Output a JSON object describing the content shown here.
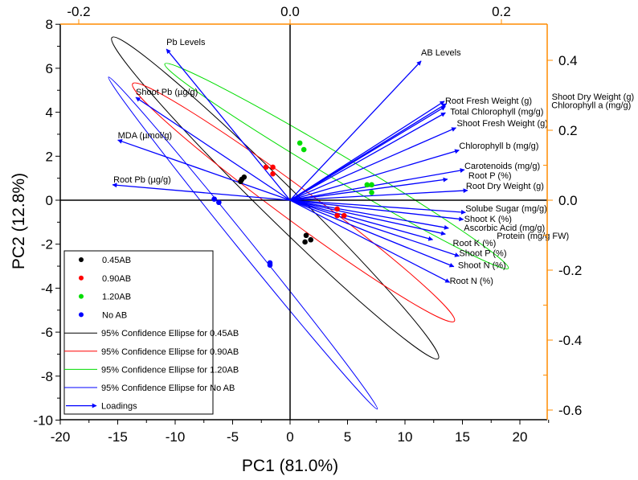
{
  "chart_data": {
    "type": "scatter",
    "title": "",
    "xlabel": "PC1 (81.0%)",
    "ylabel": "PC2 (12.8%)",
    "xlim": [
      -20,
      22.5
    ],
    "ylim": [
      -10,
      8
    ],
    "xticks": [
      "-20",
      "-15",
      "-10",
      "-5",
      "0",
      "5",
      "10",
      "15",
      "20"
    ],
    "yticks": [
      "-10",
      "-8",
      "-6",
      "-4",
      "-2",
      "0",
      "2",
      "4",
      "6",
      "8"
    ],
    "top_axis": {
      "ticks": [
        "-0.2",
        "0.0",
        "0.2"
      ]
    },
    "right_axis": {
      "ticks": [
        "-0.6",
        "-0.4",
        "-0.2",
        "0.0",
        "0.2",
        "0.4"
      ]
    },
    "axis_color_secondary": "#ff8c00",
    "legend_position": "bottom-left",
    "groups": [
      {
        "name": "0.45AB",
        "color": "#000000",
        "ellipse_label": "95% Confidence Ellipse for 0.45AB",
        "points": [
          [
            -4.2,
            0.95
          ],
          [
            -4.0,
            1.05
          ],
          [
            -4.3,
            0.85
          ],
          [
            1.4,
            -1.6
          ],
          [
            1.3,
            -1.9
          ],
          [
            1.8,
            -1.8
          ]
        ],
        "ellipse": {
          "ends": [
            [
              -15.5,
              7.4
            ],
            [
              12.9,
              -7.2
            ]
          ],
          "half_width": 0.8
        }
      },
      {
        "name": "0.90AB",
        "color": "#ff0000",
        "ellipse_label": "95% Confidence Ellipse for 0.90AB",
        "points": [
          [
            -2.1,
            1.5
          ],
          [
            -1.5,
            1.5
          ],
          [
            -1.5,
            1.2
          ],
          [
            4.1,
            -0.4
          ],
          [
            4.1,
            -0.7
          ],
          [
            4.7,
            -0.7
          ]
        ],
        "ellipse": {
          "ends": [
            [
              -13.7,
              5.3
            ],
            [
              14.3,
              -5.5
            ]
          ],
          "half_width": 0.75
        }
      },
      {
        "name": "1.20AB",
        "color": "#00dd00",
        "ellipse_label": "95% Confidence Ellipse for 1.20AB",
        "points": [
          [
            0.85,
            2.6
          ],
          [
            1.2,
            2.3
          ],
          [
            6.7,
            0.7
          ],
          [
            7.1,
            0.7
          ],
          [
            7.1,
            0.35
          ]
        ],
        "ellipse": {
          "ends": [
            [
              -10.9,
              6.2
            ],
            [
              19.0,
              -3.1
            ]
          ],
          "half_width": 0.55
        }
      },
      {
        "name": "No AB",
        "color": "#0000ff",
        "ellipse_label": "95% Confidence Ellipse for No AB",
        "points": [
          [
            -6.6,
            0.05
          ],
          [
            -6.2,
            -0.1
          ],
          [
            -1.75,
            -2.85
          ],
          [
            -1.75,
            -2.95
          ]
        ],
        "ellipse": {
          "ends": [
            [
              -15.8,
              5.6
            ],
            [
              7.6,
              -9.5
            ]
          ],
          "half_width": 0.3
        }
      }
    ],
    "loadings_label": "Loadings",
    "loading_color": "#0000ff",
    "loadings": [
      {
        "name": "Pb Levels",
        "pc1": -0.117,
        "pc2": 0.432
      },
      {
        "name": "AB Levels",
        "pc1": 0.124,
        "pc2": 0.398
      },
      {
        "name": "Shoot Pb (µg/g)",
        "pc1": -0.146,
        "pc2": 0.294
      },
      {
        "name": "MDA (µmol/g)",
        "pc1": -0.163,
        "pc2": 0.172
      },
      {
        "name": "Root Pb (µg/g)",
        "pc1": -0.168,
        "pc2": 0.044
      },
      {
        "name": "Root Fresh Weight (g)",
        "pc1": 0.146,
        "pc2": 0.283
      },
      {
        "name": "Shoot Dry Weight (g)",
        "pc1": 0.148,
        "pc2": 0.276
      },
      {
        "name": "Chlorophyll  a (mg/g)",
        "pc1": 0.147,
        "pc2": 0.268
      },
      {
        "name": "Total Chlorophyll  (mg/g)",
        "pc1": 0.147,
        "pc2": 0.25
      },
      {
        "name": "Shoot Fresh Weight (g)",
        "pc1": 0.157,
        "pc2": 0.207
      },
      {
        "name": "Chlorophyll  b (mg/g)",
        "pc1": 0.16,
        "pc2": 0.143
      },
      {
        "name": "Carotenoids (mg/g)",
        "pc1": 0.165,
        "pc2": 0.087
      },
      {
        "name": "Root P (%)",
        "pc1": 0.149,
        "pc2": 0.06
      },
      {
        "name": "Root Dry Weight (g)",
        "pc1": 0.168,
        "pc2": 0.028
      },
      {
        "name": "Solube Sugar (mg/g)",
        "pc1": 0.166,
        "pc2": -0.035
      },
      {
        "name": "Shoot K (%)",
        "pc1": 0.164,
        "pc2": -0.055
      },
      {
        "name": "Ascorbic Acid (mg/g)",
        "pc1": 0.15,
        "pc2": -0.08
      },
      {
        "name": "Protein (mg/g FW)",
        "pc1": 0.147,
        "pc2": -0.097
      },
      {
        "name": "Root K (%)",
        "pc1": 0.135,
        "pc2": -0.113
      },
      {
        "name": "Shoot P (%)",
        "pc1": 0.16,
        "pc2": -0.16
      },
      {
        "name": "Shoot N (%)",
        "pc1": 0.155,
        "pc2": -0.19
      },
      {
        "name": "Root N (%)",
        "pc1": 0.151,
        "pc2": -0.235
      }
    ]
  }
}
